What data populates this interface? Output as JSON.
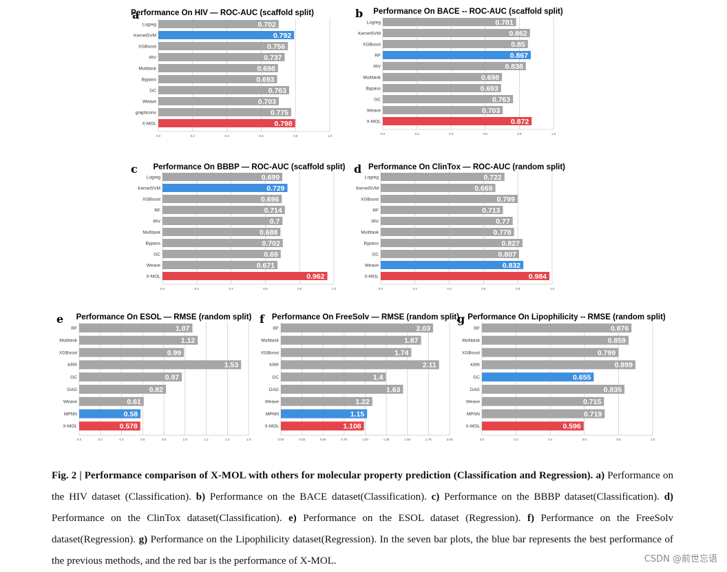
{
  "colors": {
    "gray": "#a6a6a6",
    "best_previous": "#3d8fe0",
    "xmol": "#e5454a"
  },
  "chart_data": [
    {
      "id": "a",
      "panel_label": "a",
      "type": "bar",
      "orientation": "horizontal",
      "title": "Performance On HIV — ROC-AUC (scaffold split)",
      "categories": [
        "Logreg",
        "KernelSVM",
        "XGBoost",
        "IRV",
        "Multitask",
        "Bypass",
        "GC",
        "Weave",
        "graphconv",
        "X-MOL"
      ],
      "values": [
        0.702,
        0.792,
        0.756,
        0.737,
        0.698,
        0.693,
        0.763,
        0.703,
        0.775,
        0.798
      ],
      "value_labels": [
        "0.702",
        "0.792",
        "0.756",
        "0.737",
        "0.698",
        "0.693",
        "0.763",
        "0.703",
        "0.775",
        "0.798"
      ],
      "highlight": {
        "KernelSVM": "best_previous",
        "X-MOL": "xmol"
      },
      "xlim": [
        0,
        1
      ],
      "xticks": [
        "0.0",
        "0.2",
        "0.4",
        "0.6",
        "0.8",
        "1.0"
      ]
    },
    {
      "id": "b",
      "panel_label": "b",
      "type": "bar",
      "orientation": "horizontal",
      "title": "Performance On BACE -- ROC-AUC (scaffold split)",
      "categories": [
        "Logreg",
        "KernelSVM",
        "XGBoost",
        "RF",
        "IRV",
        "Multitask",
        "Bypass",
        "GC",
        "Weave",
        "X-MOL"
      ],
      "values": [
        0.781,
        0.862,
        0.85,
        0.867,
        0.838,
        0.698,
        0.693,
        0.763,
        0.703,
        0.872
      ],
      "value_labels": [
        "0.781",
        "0.862",
        "0.85",
        "0.867",
        "0.838",
        "0.698",
        "0.693",
        "0.763",
        "0.703",
        "0.872"
      ],
      "highlight": {
        "RF": "best_previous",
        "X-MOL": "xmol"
      },
      "xlim": [
        0,
        1
      ],
      "xticks": [
        "0.0",
        "0.2",
        "0.4",
        "0.6",
        "0.8",
        "1.0"
      ]
    },
    {
      "id": "c",
      "panel_label": "c",
      "type": "bar",
      "orientation": "horizontal",
      "title": "Performance On BBBP — ROC-AUC (scaffold split)",
      "categories": [
        "Logreg",
        "KernelSVM",
        "XGBoost",
        "RF",
        "IRV",
        "Multitask",
        "Bypass",
        "GC",
        "Weave",
        "X-MOL"
      ],
      "values": [
        0.699,
        0.729,
        0.696,
        0.714,
        0.7,
        0.688,
        0.702,
        0.69,
        0.671,
        0.962
      ],
      "value_labels": [
        "0.699",
        "0.729",
        "0.696",
        "0.714",
        "0.7",
        "0.688",
        "0.702",
        "0.69",
        "0.671",
        "0.962"
      ],
      "highlight": {
        "KernelSVM": "best_previous",
        "X-MOL": "xmol"
      },
      "xlim": [
        0,
        1
      ],
      "xticks": [
        "0.0",
        "0.2",
        "0.4",
        "0.6",
        "0.8",
        "1.0"
      ]
    },
    {
      "id": "d",
      "panel_label": "d",
      "type": "bar",
      "orientation": "horizontal",
      "title": "Performance On ClinTox — ROC-AUC (random split)",
      "categories": [
        "Logreg",
        "KernelSVM",
        "XGBoost",
        "RF",
        "IRV",
        "Multitask",
        "Bypass",
        "GC",
        "Weave",
        "X-MOL"
      ],
      "values": [
        0.722,
        0.669,
        0.799,
        0.713,
        0.77,
        0.778,
        0.827,
        0.807,
        0.832,
        0.984
      ],
      "value_labels": [
        "0.722",
        "0.669",
        "0.799",
        "0.713",
        "0.77",
        "0.778",
        "0.827",
        "0.807",
        "0.832",
        "0.984"
      ],
      "highlight": {
        "Weave": "best_previous",
        "X-MOL": "xmol"
      },
      "xlim": [
        0,
        1
      ],
      "xticks": [
        "0.0",
        "0.2",
        "0.4",
        "0.6",
        "0.8",
        "1.0"
      ]
    },
    {
      "id": "e",
      "panel_label": "e",
      "type": "bar",
      "orientation": "horizontal",
      "title": "Performance On ESOL — RMSE (random split)",
      "categories": [
        "RF",
        "Multitask",
        "XGBoost",
        "KRR",
        "GC",
        "DAG",
        "Weave",
        "MPNN",
        "X-MOL"
      ],
      "values": [
        1.07,
        1.12,
        0.99,
        1.53,
        0.97,
        0.82,
        0.61,
        0.58,
        0.578
      ],
      "value_labels": [
        "1.07",
        "1.12",
        "0.99",
        "1.53",
        "0.97",
        "0.82",
        "0.61",
        "0.58",
        "0.578"
      ],
      "highlight": {
        "MPNN": "best_previous",
        "X-MOL": "xmol"
      },
      "xlim": [
        0,
        1.6
      ],
      "xticks": [
        "0.0",
        "0.2",
        "0.4",
        "0.6",
        "0.8",
        "1.0",
        "1.2",
        "1.4",
        "1.6"
      ]
    },
    {
      "id": "f",
      "panel_label": "f",
      "type": "bar",
      "orientation": "horizontal",
      "title": "Performance On FreeSolv — RMSE (random split)",
      "categories": [
        "RF",
        "Multitask",
        "XGBoost",
        "KRR",
        "GC",
        "DAG",
        "Weave",
        "MPNN",
        "X-MOL"
      ],
      "values": [
        2.03,
        1.87,
        1.74,
        2.11,
        1.4,
        1.63,
        1.22,
        1.15,
        1.108
      ],
      "value_labels": [
        "2.03",
        "1.87",
        "1.74",
        "2.11",
        "1.4",
        "1.63",
        "1.22",
        "1.15",
        "1.108"
      ],
      "highlight": {
        "MPNN": "best_previous",
        "X-MOL": "xmol"
      },
      "xlim": [
        0,
        2.25
      ],
      "xticks": [
        "0.00",
        "0.25",
        "0.50",
        "0.75",
        "1.00",
        "1.25",
        "1.50",
        "1.75",
        "2.00"
      ]
    },
    {
      "id": "g",
      "panel_label": "g",
      "type": "bar",
      "orientation": "horizontal",
      "title": "Performance On Lipophilicity -- RMSE (random split)",
      "categories": [
        "RF",
        "Multitask",
        "XGBoost",
        "KRR",
        "GC",
        "DAG",
        "Weave",
        "MPNN",
        "X-MOL"
      ],
      "values": [
        0.876,
        0.859,
        0.799,
        0.899,
        0.655,
        0.835,
        0.715,
        0.719,
        0.596
      ],
      "value_labels": [
        "0.876",
        "0.859",
        "0.799",
        "0.899",
        "0.655",
        "0.835",
        "0.715",
        "0.719",
        "0.596"
      ],
      "highlight": {
        "GC": "best_previous",
        "X-MOL": "xmol"
      },
      "xlim": [
        0,
        1
      ],
      "xticks": [
        "0.0",
        "0.2",
        "0.4",
        "0.6",
        "0.8",
        "1.0"
      ]
    }
  ],
  "caption": {
    "fig_label": "Fig. 2 | Performance comparison of X-MOL with others for molecular property prediction (Classification and Regression).",
    "segments": [
      {
        "label": "a)",
        "text": "Performance on the HIV dataset (Classification)."
      },
      {
        "label": "b)",
        "text": "Performance on the BACE dataset(Classification)."
      },
      {
        "label": "c)",
        "text": "Performance on the BBBP dataset(Classification)."
      },
      {
        "label": "d)",
        "text": "Performance on the ClinTox dataset(Classification)."
      },
      {
        "label": "e)",
        "text": "Performance on the ESOL dataset (Regression)."
      },
      {
        "label": "f)",
        "text": "Performance on the FreeSolv dataset(Regression)."
      },
      {
        "label": "g)",
        "text": "Performance on the Lipophilicity dataset(Regression). In the seven bar plots, the blue bar represents the best performance of the previous methods, and the red bar is the performance of X-MOL."
      }
    ]
  },
  "watermark": "CSDN @前世忘语"
}
